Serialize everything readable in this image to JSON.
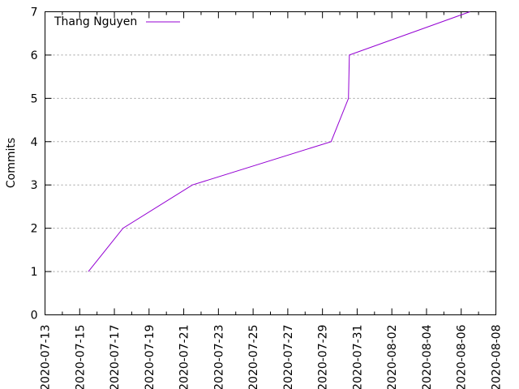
{
  "chart_data": {
    "type": "line",
    "title": "",
    "xlabel": "",
    "ylabel": "Commits",
    "ylim": [
      0,
      7
    ],
    "xlim": [
      "2020-07-13",
      "2020-08-08"
    ],
    "y_ticks": [
      "0",
      "1",
      "2",
      "3",
      "4",
      "5",
      "6",
      "7"
    ],
    "x_ticks": [
      "2020-07-13",
      "2020-07-15",
      "2020-07-17",
      "2020-07-19",
      "2020-07-21",
      "2020-07-23",
      "2020-07-25",
      "2020-07-27",
      "2020-07-29",
      "2020-07-31",
      "2020-08-02",
      "2020-08-04",
      "2020-08-06",
      "2020-08-08"
    ],
    "grid": "horizontal dashed",
    "legend_position": "top-left",
    "series": [
      {
        "name": "Thang Nguyen",
        "color": "#9400d3",
        "points": [
          {
            "x": "2020-07-15",
            "y": 1
          },
          {
            "x": "2020-07-17",
            "y": 2
          },
          {
            "x": "2020-07-21",
            "y": 3
          },
          {
            "x": "2020-07-29",
            "y": 4
          },
          {
            "x": "2020-07-30",
            "y": 5
          },
          {
            "x": "2020-07-30",
            "y": 6
          },
          {
            "x": "2020-08-06",
            "y": 7
          }
        ]
      }
    ]
  }
}
